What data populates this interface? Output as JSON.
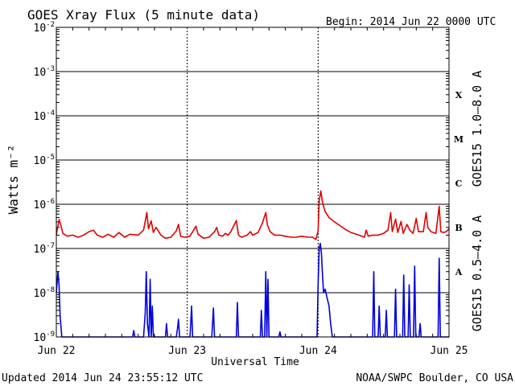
{
  "header": {
    "title": "GOES Xray Flux (5 minute data)",
    "begin_label": "Begin:  2014 Jun 22 0000 UTC"
  },
  "footer": {
    "updated": "Updated 2014 Jun 24 23:55:12 UTC",
    "credit": "NOAA/SWPC Boulder, CO USA"
  },
  "chart_data": {
    "type": "line",
    "title": "GOES Xray Flux (5 minute data)",
    "xlabel": "Universal Time",
    "ylabel": "Watts m⁻²",
    "yscale": "log",
    "ylim": [
      1e-09,
      0.01
    ],
    "xlim": [
      0,
      72
    ],
    "x_unit": "hours since 2014 Jun 22 0000 UTC",
    "x_ticks": [
      {
        "x": 0,
        "label": "Jun 22"
      },
      {
        "x": 24,
        "label": "Jun 23"
      },
      {
        "x": 48,
        "label": "Jun 24"
      },
      {
        "x": 72,
        "label": "Jun 25"
      }
    ],
    "y_ticks": [
      {
        "base": "10",
        "exp": "-9"
      },
      {
        "base": "10",
        "exp": "-8"
      },
      {
        "base": "10",
        "exp": "-7"
      },
      {
        "base": "10",
        "exp": "-6"
      },
      {
        "base": "10",
        "exp": "-5"
      },
      {
        "base": "10",
        "exp": "-4"
      },
      {
        "base": "10",
        "exp": "-3"
      },
      {
        "base": "10",
        "exp": "-2"
      }
    ],
    "flare_classes": [
      {
        "label": "A",
        "y": 3e-08
      },
      {
        "label": "B",
        "y": 3e-07
      },
      {
        "label": "C",
        "y": 3e-06
      },
      {
        "label": "M",
        "y": 3e-05
      },
      {
        "label": "X",
        "y": 0.0003
      }
    ],
    "grid": true,
    "series": [
      {
        "name": "GOES15 1.0–8.0 A",
        "color": "#e00000",
        "points": [
          [
            0,
            2e-07
          ],
          [
            0.5,
            4.5e-07
          ],
          [
            0.8,
            3.5e-07
          ],
          [
            1.2,
            2.2e-07
          ],
          [
            2,
            1.9e-07
          ],
          [
            3,
            2e-07
          ],
          [
            4,
            1.8e-07
          ],
          [
            5,
            2e-07
          ],
          [
            6,
            2.4e-07
          ],
          [
            6.8,
            2.6e-07
          ],
          [
            7.5,
            2e-07
          ],
          [
            8.5,
            1.8e-07
          ],
          [
            9.5,
            2.1e-07
          ],
          [
            10.5,
            1.8e-07
          ],
          [
            11.5,
            2.3e-07
          ],
          [
            12.5,
            1.8e-07
          ],
          [
            13.5,
            2.1e-07
          ],
          [
            15,
            2e-07
          ],
          [
            16,
            2.6e-07
          ],
          [
            16.6,
            6.5e-07
          ],
          [
            16.9,
            2.8e-07
          ],
          [
            17.4,
            4.2e-07
          ],
          [
            17.8,
            2.3e-07
          ],
          [
            18.3,
            3e-07
          ],
          [
            19.2,
            2e-07
          ],
          [
            20,
            1.7e-07
          ],
          [
            21,
            1.8e-07
          ],
          [
            22,
            2.5e-07
          ],
          [
            22.4,
            3.5e-07
          ],
          [
            22.8,
            1.9e-07
          ],
          [
            23.5,
            1.8e-07
          ],
          [
            24.5,
            1.9e-07
          ],
          [
            25,
            2.4e-07
          ],
          [
            25.6,
            3.2e-07
          ],
          [
            26,
            2.1e-07
          ],
          [
            27,
            1.7e-07
          ],
          [
            28,
            1.8e-07
          ],
          [
            29,
            2.4e-07
          ],
          [
            29.4,
            3e-07
          ],
          [
            29.8,
            2e-07
          ],
          [
            30.5,
            1.9e-07
          ],
          [
            31,
            2.2e-07
          ],
          [
            31.5,
            2e-07
          ],
          [
            32,
            2.4e-07
          ],
          [
            33,
            4.3e-07
          ],
          [
            33.4,
            2e-07
          ],
          [
            34,
            1.8e-07
          ],
          [
            35,
            2e-07
          ],
          [
            35.6,
            2.4e-07
          ],
          [
            36,
            2e-07
          ],
          [
            37,
            2.3e-07
          ],
          [
            37.8,
            3.8e-07
          ],
          [
            38.4,
            6.5e-07
          ],
          [
            38.7,
            3.4e-07
          ],
          [
            39.2,
            2.4e-07
          ],
          [
            40,
            2e-07
          ],
          [
            41,
            2e-07
          ],
          [
            42,
            1.9e-07
          ],
          [
            43,
            1.8e-07
          ],
          [
            44,
            1.8e-07
          ],
          [
            45,
            1.9e-07
          ],
          [
            46,
            1.8e-07
          ],
          [
            47,
            1.8e-07
          ],
          [
            47.6,
            1.6e-07
          ],
          [
            48,
            2.5e-07
          ],
          [
            48.2,
            1.2e-06
          ],
          [
            48.5,
            2e-06
          ],
          [
            48.8,
            1.1e-06
          ],
          [
            49.3,
            6.8e-07
          ],
          [
            50,
            5e-07
          ],
          [
            51,
            4e-07
          ],
          [
            52,
            3.3e-07
          ],
          [
            53,
            2.7e-07
          ],
          [
            54,
            2.3e-07
          ],
          [
            55,
            2.1e-07
          ],
          [
            56,
            1.9e-07
          ],
          [
            56.5,
            1.8e-07
          ],
          [
            56.8,
            2.6e-07
          ],
          [
            57.2,
            1.9e-07
          ],
          [
            58,
            2e-07
          ],
          [
            59,
            2e-07
          ],
          [
            60,
            2.2e-07
          ],
          [
            60.8,
            2.6e-07
          ],
          [
            61.3,
            6.5e-07
          ],
          [
            61.6,
            2.4e-07
          ],
          [
            62.2,
            4.6e-07
          ],
          [
            62.6,
            2.3e-07
          ],
          [
            63.2,
            4.1e-07
          ],
          [
            63.6,
            2.2e-07
          ],
          [
            64.3,
            3.5e-07
          ],
          [
            64.8,
            2.6e-07
          ],
          [
            65.4,
            2.2e-07
          ],
          [
            66,
            4.8e-07
          ],
          [
            66.4,
            2.4e-07
          ],
          [
            67.3,
            2.4e-07
          ],
          [
            67.8,
            6.5e-07
          ],
          [
            68.1,
            3e-07
          ],
          [
            68.7,
            2.4e-07
          ],
          [
            69.6,
            2.2e-07
          ],
          [
            70.2,
            9e-07
          ],
          [
            70.5,
            2.4e-07
          ],
          [
            71,
            2.3e-07
          ],
          [
            71.5,
            2.4e-07
          ],
          [
            72,
            2.8e-07
          ]
        ]
      },
      {
        "name": "GOES15 0.5–4.0 A",
        "color": "#0000e0",
        "points": [
          [
            0,
            1e-08
          ],
          [
            0.3,
            3e-08
          ],
          [
            0.5,
            1.5e-08
          ],
          [
            0.7,
            3e-09
          ],
          [
            1.0,
            1e-09
          ],
          [
            2,
            1e-09
          ],
          [
            5,
            1e-09
          ],
          [
            10,
            1e-09
          ],
          [
            14,
            1e-09
          ],
          [
            14.2,
            1.4e-09
          ],
          [
            14.4,
            1e-09
          ],
          [
            16,
            1e-09
          ],
          [
            16.3,
            3.5e-09
          ],
          [
            16.5,
            3e-08
          ],
          [
            16.7,
            2e-09
          ],
          [
            17,
            1e-09
          ],
          [
            17.2,
            2e-08
          ],
          [
            17.4,
            1e-09
          ],
          [
            17.6,
            5e-09
          ],
          [
            17.8,
            1e-09
          ],
          [
            20,
            1e-09
          ],
          [
            20.2,
            2e-09
          ],
          [
            20.4,
            1e-09
          ],
          [
            22,
            1e-09
          ],
          [
            22.2,
            1.5e-09
          ],
          [
            22.4,
            2.5e-09
          ],
          [
            22.6,
            1e-09
          ],
          [
            24.5,
            1e-09
          ],
          [
            24.8,
            5e-09
          ],
          [
            25.0,
            1e-09
          ],
          [
            28.5,
            1e-09
          ],
          [
            28.8,
            4.5e-09
          ],
          [
            29.0,
            1e-09
          ],
          [
            33,
            1e-09
          ],
          [
            33.2,
            6e-09
          ],
          [
            33.4,
            1e-09
          ],
          [
            37.4,
            1e-09
          ],
          [
            37.6,
            4e-09
          ],
          [
            37.8,
            1e-09
          ],
          [
            38.2,
            1e-09
          ],
          [
            38.4,
            3e-08
          ],
          [
            38.6,
            1e-09
          ],
          [
            38.8,
            2e-08
          ],
          [
            39.0,
            1e-09
          ],
          [
            40.8,
            1e-09
          ],
          [
            41.0,
            1.3e-09
          ],
          [
            41.2,
            1e-09
          ],
          [
            47.8,
            1e-09
          ],
          [
            48,
            1.5e-08
          ],
          [
            48.2,
            1e-07
          ],
          [
            48.4,
            1.3e-07
          ],
          [
            48.6,
            8e-08
          ],
          [
            48.8,
            2.5e-08
          ],
          [
            49.0,
            1e-08
          ],
          [
            49.3,
            1.2e-08
          ],
          [
            49.6,
            8e-09
          ],
          [
            50.0,
            5e-09
          ],
          [
            50.3,
            2e-09
          ],
          [
            50.6,
            1e-09
          ],
          [
            58,
            1e-09
          ],
          [
            58.2,
            3e-08
          ],
          [
            58.4,
            1e-09
          ],
          [
            59,
            1e-09
          ],
          [
            59.2,
            5e-09
          ],
          [
            59.4,
            1e-09
          ],
          [
            60.3,
            1e-09
          ],
          [
            60.5,
            4e-09
          ],
          [
            60.7,
            1e-09
          ],
          [
            62,
            1e-09
          ],
          [
            62.2,
            1.2e-08
          ],
          [
            62.4,
            1e-09
          ],
          [
            63.5,
            1e-09
          ],
          [
            63.7,
            2.5e-08
          ],
          [
            63.9,
            1e-09
          ],
          [
            64.5,
            1e-09
          ],
          [
            64.7,
            1.5e-08
          ],
          [
            64.9,
            1e-09
          ],
          [
            65.5,
            1e-09
          ],
          [
            65.7,
            4e-08
          ],
          [
            65.9,
            1e-09
          ],
          [
            66.5,
            1e-09
          ],
          [
            66.7,
            2e-09
          ],
          [
            66.9,
            1e-09
          ],
          [
            70.0,
            1e-09
          ],
          [
            70.2,
            6e-08
          ],
          [
            70.4,
            1e-09
          ],
          [
            72,
            1e-09
          ]
        ]
      }
    ]
  }
}
